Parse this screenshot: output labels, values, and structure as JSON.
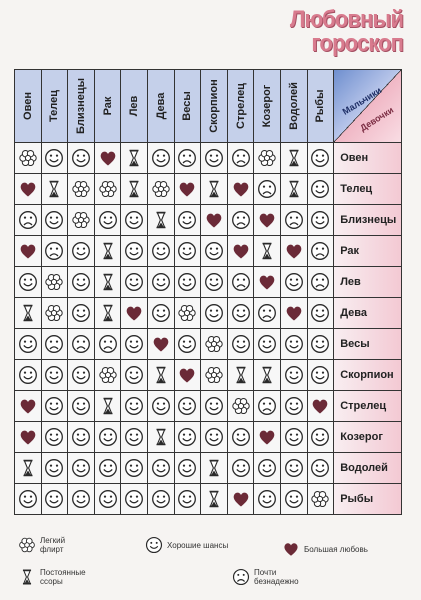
{
  "title": {
    "line1": "Любовный",
    "line2": "гороскоп"
  },
  "corner": {
    "men": "Мальчики",
    "girls": "Девочки"
  },
  "signs": [
    "Овен",
    "Телец",
    "Близнецы",
    "Рак",
    "Лев",
    "Дева",
    "Весы",
    "Скорпион",
    "Стрелец",
    "Козерог",
    "Водолей",
    "Рыбы"
  ],
  "icons": {
    "F": "flower-icon",
    "S": "smiley-icon",
    "H": "heart-icon",
    "G": "hourglass-icon",
    "X": "sad-face-icon"
  },
  "colors": {
    "heart": "#6b2a37",
    "header_blue": "#c5d0ea",
    "label_pink": "#f3c9d3",
    "title_pink": "#d87b8e"
  },
  "matrix": [
    [
      "F",
      "S",
      "S",
      "H",
      "G",
      "S",
      "X",
      "S",
      "X",
      "F",
      "G",
      "S"
    ],
    [
      "H",
      "G",
      "F",
      "F",
      "G",
      "F",
      "H",
      "G",
      "H",
      "X",
      "G",
      "S"
    ],
    [
      "X",
      "S",
      "F",
      "S",
      "S",
      "G",
      "S",
      "H",
      "X",
      "H",
      "X",
      "S"
    ],
    [
      "H",
      "X",
      "S",
      "G",
      "S",
      "S",
      "S",
      "S",
      "H",
      "G",
      "H",
      "X"
    ],
    [
      "S",
      "F",
      "S",
      "G",
      "S",
      "S",
      "S",
      "S",
      "X",
      "H",
      "S",
      "X"
    ],
    [
      "G",
      "F",
      "S",
      "G",
      "H",
      "S",
      "F",
      "S",
      "S",
      "X",
      "H",
      "S"
    ],
    [
      "S",
      "X",
      "X",
      "X",
      "S",
      "H",
      "S",
      "F",
      "S",
      "S",
      "S",
      "S"
    ],
    [
      "S",
      "S",
      "S",
      "F",
      "S",
      "G",
      "H",
      "F",
      "G",
      "G",
      "S",
      "S"
    ],
    [
      "H",
      "S",
      "S",
      "G",
      "S",
      "S",
      "S",
      "S",
      "F",
      "X",
      "S",
      "H"
    ],
    [
      "H",
      "S",
      "S",
      "S",
      "S",
      "G",
      "S",
      "S",
      "S",
      "H",
      "S",
      "S"
    ],
    [
      "G",
      "S",
      "S",
      "S",
      "S",
      "S",
      "S",
      "G",
      "S",
      "S",
      "S",
      "S"
    ],
    [
      "S",
      "S",
      "S",
      "S",
      "S",
      "S",
      "S",
      "G",
      "H",
      "S",
      "S",
      "F"
    ]
  ],
  "legend": [
    {
      "icon": "F",
      "text": "Легкий флирт"
    },
    {
      "icon": "S",
      "text": "Хорошие шансы"
    },
    {
      "icon": "H",
      "text": "Большая любовь"
    },
    {
      "icon": "G",
      "text": "Постоянные ссоры"
    },
    {
      "icon": "X",
      "text": "Почти безнадежно"
    }
  ]
}
